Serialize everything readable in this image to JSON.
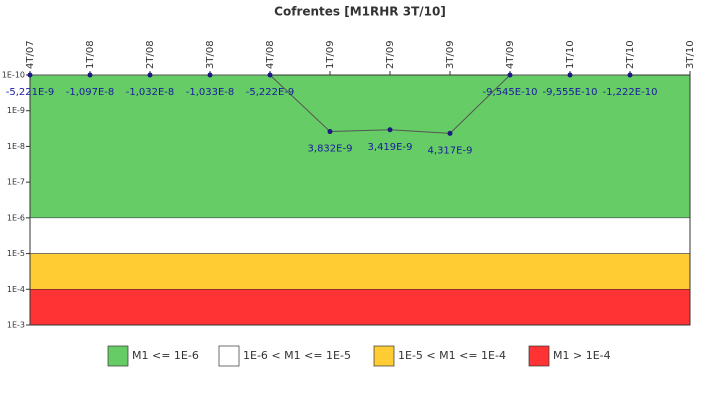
{
  "chart_data": {
    "type": "line",
    "title": "Cofrentes [M1RHR 3T/10]",
    "categories": [
      "4T/07",
      "1T/08",
      "2T/08",
      "3T/08",
      "4T/08",
      "1T/09",
      "2T/09",
      "3T/09",
      "4T/09",
      "1T/10",
      "2T/10",
      "3T/10"
    ],
    "series": [
      {
        "name": "M1RHR",
        "color": "#1a1a80",
        "line_color": "#555555",
        "values": [
          -5.221e-09,
          -1.097e-08,
          -1.032e-08,
          -1.033e-08,
          -5.222e-09,
          3.832e-09,
          3.419e-09,
          4.317e-09,
          -9.545e-10,
          -9.555e-10,
          -1.222e-10,
          null
        ],
        "value_labels": [
          "-5,221E-9",
          "-1,097E-8",
          "-1,032E-8",
          "-1,033E-8",
          "-5,222E-9",
          "3,832E-9",
          "3,419E-9",
          "4,317E-9",
          "-9,545E-10",
          "-9,555E-10",
          "-1,222E-10",
          null
        ]
      }
    ],
    "log_scale": true,
    "y_reversed": true,
    "ylim": [
      1e-10,
      0.001
    ],
    "yticks": [
      {
        "value": 1e-10,
        "label": "1E-10"
      },
      {
        "value": 1e-09,
        "label": "1E-9"
      },
      {
        "value": 1e-08,
        "label": "1E-8"
      },
      {
        "value": 1e-07,
        "label": "1E-7"
      },
      {
        "value": 1e-06,
        "label": "1E-6"
      },
      {
        "value": 1e-05,
        "label": "1E-5"
      },
      {
        "value": 0.0001,
        "label": "1E-4"
      },
      {
        "value": 0.001,
        "label": "1E-3"
      }
    ],
    "bands": [
      {
        "from": 1e-10,
        "to": 1e-06,
        "color": "#66cc66",
        "label": "M1 <= 1E-6"
      },
      {
        "from": 1e-06,
        "to": 1e-05,
        "color": "#ffffff",
        "label": "1E-6 < M1 <= 1E-5"
      },
      {
        "from": 1e-05,
        "to": 0.0001,
        "color": "#ffcc33",
        "label": "1E-5 < M1 <= 1E-4"
      },
      {
        "from": 0.0001,
        "to": 0.001,
        "color": "#ff3333",
        "label": "M1 > 1E-4"
      }
    ],
    "legend": "bottom"
  }
}
